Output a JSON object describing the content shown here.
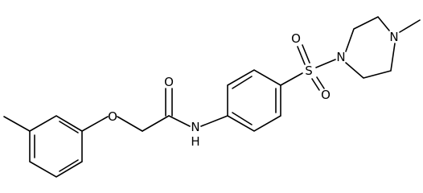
{
  "atoms": [
    {
      "label": "O"
    },
    {
      "label": "O"
    },
    {
      "label": "N"
    },
    {
      "label": "H"
    },
    {
      "label": "S"
    },
    {
      "label": "O"
    },
    {
      "label": "O"
    },
    {
      "label": "N"
    },
    {
      "label": "N"
    }
  ]
}
